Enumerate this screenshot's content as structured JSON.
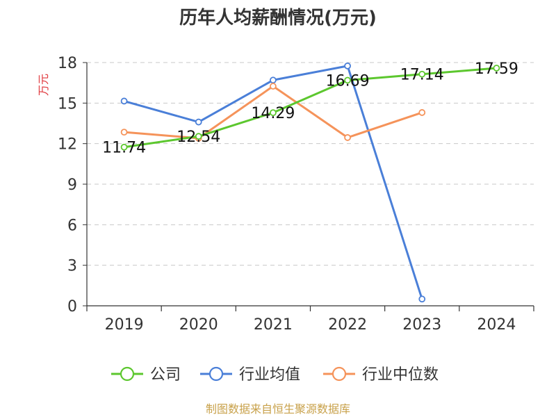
{
  "chart_data": {
    "type": "line",
    "title": "历年人均薪酬情况(万元)",
    "ylabel": "万元",
    "categories": [
      "2019",
      "2020",
      "2021",
      "2022",
      "2023",
      "2024"
    ],
    "ylim": [
      0,
      18
    ],
    "yticks": [
      0,
      3,
      6,
      9,
      12,
      15,
      18
    ],
    "grid": true,
    "legend_position": "bottom",
    "series": [
      {
        "name": "公司",
        "color": "#5cc72e",
        "values": [
          11.74,
          12.54,
          14.29,
          16.69,
          17.14,
          17.59
        ],
        "labels": [
          "11.74",
          "12.54",
          "14.29",
          "16.69",
          "17.14",
          "17.59"
        ]
      },
      {
        "name": "行业均值",
        "color": "#4a7fd8",
        "values": [
          15.15,
          13.6,
          16.7,
          17.75,
          0.5,
          null
        ]
      },
      {
        "name": "行业中位数",
        "color": "#f5935a",
        "values": [
          12.85,
          12.4,
          16.25,
          12.45,
          14.3,
          null
        ]
      }
    ]
  },
  "source": "制图数据来自恒生聚源数据库"
}
